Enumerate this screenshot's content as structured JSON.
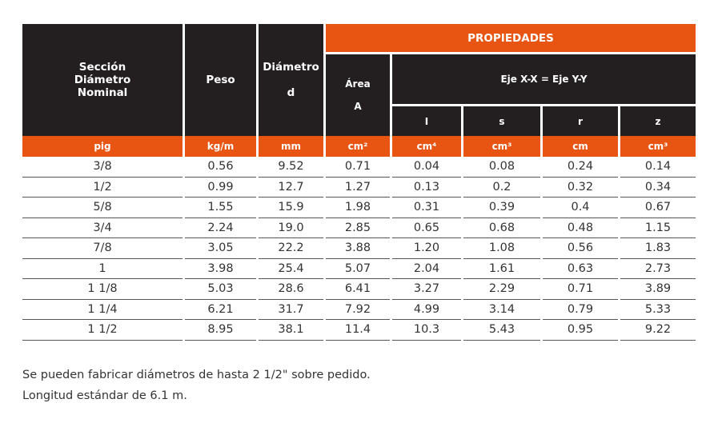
{
  "header": {
    "col1": [
      "Sección",
      "Diámetro",
      "Nominal"
    ],
    "col2": "Peso",
    "col3": [
      "Diámetro",
      "d"
    ],
    "col4": [
      "Área",
      "A"
    ],
    "propiedades": "PROPIEDADES",
    "eje": "Eje X-X = Eje Y-Y",
    "sub": [
      "I",
      "s",
      "r",
      "z"
    ]
  },
  "units": [
    "pig",
    "kg/m",
    "mm",
    "cm²",
    "cm⁴",
    "cm³",
    "cm",
    "cm³"
  ],
  "rows": [
    [
      "3/8",
      "0.56",
      "9.52",
      "0.71",
      "0.04",
      "0.08",
      "0.24",
      "0.14"
    ],
    [
      "1/2",
      "0.99",
      "12.7",
      "1.27",
      "0.13",
      "0.2",
      "0.32",
      "0.34"
    ],
    [
      "5/8",
      "1.55",
      "15.9",
      "1.98",
      "0.31",
      "0.39",
      "0.4",
      "0.67"
    ],
    [
      "3/4",
      "2.24",
      "19.0",
      "2.85",
      "0.65",
      "0.68",
      "0.48",
      "1.15"
    ],
    [
      "7/8",
      "3.05",
      "22.2",
      "3.88",
      "1.20",
      "1.08",
      "0.56",
      "1.83"
    ],
    [
      "1",
      "3.98",
      "25.4",
      "5.07",
      "2.04",
      "1.61",
      "0.63",
      "2.73"
    ],
    [
      "1 1/8",
      "5.03",
      "28.6",
      "6.41",
      "3.27",
      "2.29",
      "0.71",
      "3.89"
    ],
    [
      "1 1/4",
      "6.21",
      "31.7",
      "7.92",
      "4.99",
      "3.14",
      "0.79",
      "5.33"
    ],
    [
      "1 1/2",
      "8.95",
      "38.1",
      "11.4",
      "10.3",
      "5.43",
      "0.95",
      "9.22"
    ]
  ],
  "notes": [
    "Se pueden fabricar diámetros de hasta 2 1/2\" sobre pedido.",
    "Longitud estándar de 6.1 m."
  ],
  "colors": {
    "dark": "#231f20",
    "orange": "#e85512"
  }
}
